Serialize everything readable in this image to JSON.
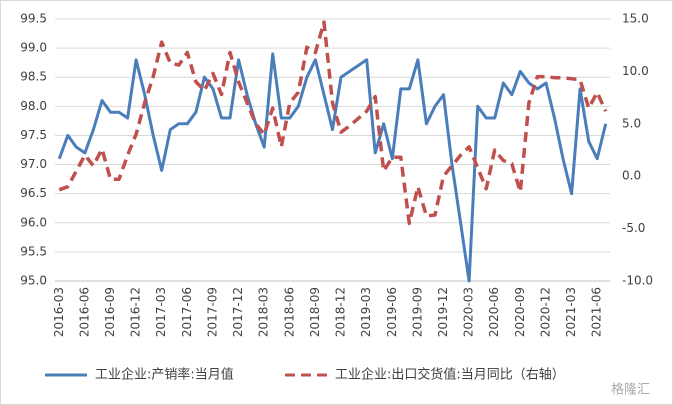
{
  "chart_data": {
    "type": "line",
    "categories": [
      "2016-03",
      null,
      null,
      "2016-06",
      null,
      null,
      "2016-09",
      null,
      null,
      "2016-12",
      null,
      null,
      "2017-03",
      null,
      null,
      "2017-06",
      null,
      null,
      "2017-09",
      null,
      null,
      "2017-12",
      null,
      null,
      "2018-03",
      null,
      null,
      "2018-06",
      null,
      null,
      "2018-09",
      null,
      null,
      "2018-12",
      null,
      null,
      "2019-03",
      null,
      null,
      "2019-06",
      null,
      null,
      "2019-09",
      null,
      null,
      "2019-12",
      null,
      null,
      "2020-03",
      null,
      null,
      "2020-06",
      null,
      null,
      "2020-09",
      null,
      null,
      "2020-12",
      null,
      null,
      "2021-03",
      null,
      null,
      "2021-06",
      null
    ],
    "series": [
      {
        "name": "工业企业:产销率:当月值",
        "color": "#4a7ebb",
        "dash": false,
        "values": [
          97.1,
          97.5,
          97.3,
          97.2,
          97.6,
          98.1,
          97.9,
          97.9,
          97.8,
          98.8,
          98.2,
          97.5,
          96.9,
          97.6,
          97.7,
          97.7,
          97.9,
          98.5,
          98.3,
          97.8,
          97.8,
          98.8,
          98.2,
          97.7,
          97.3,
          98.9,
          97.8,
          97.8,
          98.0,
          98.5,
          98.8,
          98.2,
          97.6,
          98.5,
          98.6,
          98.7,
          98.8,
          97.2,
          97.7,
          97.1,
          98.3,
          98.3,
          98.8,
          97.7,
          98.0,
          98.2,
          97.0,
          96.0,
          95.0,
          98.0,
          97.8,
          97.8,
          98.4,
          98.2,
          98.6,
          98.4,
          98.3,
          98.4,
          97.8,
          97.1,
          96.5,
          98.3,
          97.4,
          97.1,
          97.7
        ]
      },
      {
        "name": "工业企业:出口交货值:当月同比（右轴）",
        "color": "#c0504d",
        "dash": true,
        "axis": "y2",
        "values": [
          -1.3,
          -1.0,
          0.5,
          2.0,
          1.0,
          2.6,
          -0.3,
          -0.3,
          2.0,
          4.0,
          7.0,
          9.5,
          12.8,
          10.8,
          10.6,
          11.8,
          9.0,
          8.2,
          9.8,
          7.8,
          11.8,
          9.0,
          7.0,
          5.0,
          4.0,
          6.5,
          2.8,
          7.0,
          8.0,
          12.3,
          11.8,
          14.7,
          7.0,
          4.2,
          4.8,
          5.5,
          6.2,
          7.6,
          0.5,
          1.8,
          1.8,
          -4.5,
          -1.0,
          -3.8,
          -3.7,
          0.0,
          1.0,
          2.0,
          2.8,
          0.8,
          -1.2,
          2.5,
          1.5,
          1.2,
          -1.5,
          7.0,
          9.5,
          9.5,
          9.4,
          9.4,
          9.3,
          9.2,
          6.5,
          8.0,
          6.2
        ]
      }
    ],
    "ylim": [
      95,
      99.5
    ],
    "yticks": [
      {
        "value": 95,
        "label": "95.0"
      },
      95.5,
      {
        "value": 96,
        "label": "96.0"
      },
      96.5,
      {
        "value": 97,
        "label": "97.0"
      },
      97.5,
      {
        "value": 98,
        "label": "98.0"
      },
      98.5,
      {
        "value": 99,
        "label": "99.0"
      },
      99.5
    ],
    "y2lim": [
      -10,
      15
    ],
    "y2ticks": [
      {
        "value": -10,
        "label": "-10.0"
      },
      {
        "value": -5,
        "label": "-5.0"
      },
      {
        "value": 0,
        "label": "0.0"
      },
      {
        "value": 5,
        "label": "5.0"
      },
      {
        "value": 10,
        "label": "10.0"
      },
      {
        "value": 15,
        "label": "15.0"
      }
    ],
    "grid": true,
    "legend": "bottom",
    "watermark": "格隆汇"
  }
}
